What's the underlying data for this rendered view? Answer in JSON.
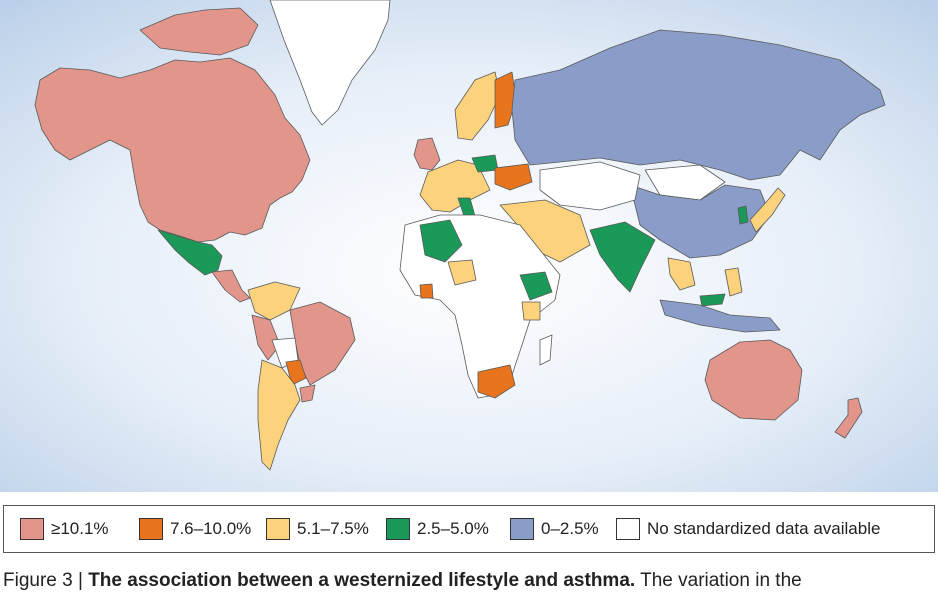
{
  "colors": {
    "ocean": "#dde9f6",
    "land_border": "#5a5a5a",
    "greenland": "#ffffff",
    "cat_1": "#e2958a",
    "cat_2": "#e8751d",
    "cat_3": "#fcd27c",
    "cat_4": "#1a9958",
    "cat_5": "#8a9cc8",
    "cat_6": "#ffffff"
  },
  "legend": {
    "items": [
      {
        "label": "≥10.1%",
        "color": "#e2958a"
      },
      {
        "label": "7.6–10.0%",
        "color": "#e8751d"
      },
      {
        "label": "5.1–7.5%",
        "color": "#fcd27c"
      },
      {
        "label": "2.5–5.0%",
        "color": "#1a9958"
      },
      {
        "label": "0–2.5%",
        "color": "#8a9cc8"
      },
      {
        "label": "No standardized data available",
        "color": "#ffffff"
      }
    ]
  },
  "caption": {
    "prefix": "Figure 3 | ",
    "bold": "The association between a westernized lifestyle and asthma.",
    "rest": " The variation in the"
  },
  "map_regions": [
    {
      "region": "North America",
      "category": "≥10.1%"
    },
    {
      "region": "Greenland",
      "category": "No standardized data available"
    },
    {
      "region": "Mexico",
      "category": "2.5–5.0%"
    },
    {
      "region": "Central America",
      "category": "≥10.1%"
    },
    {
      "region": "Colombia / Venezuela",
      "category": "5.1–7.5%"
    },
    {
      "region": "Brazil",
      "category": "≥10.1%"
    },
    {
      "region": "Peru",
      "category": "≥10.1%"
    },
    {
      "region": "Bolivia",
      "category": "No standardized data available"
    },
    {
      "region": "Paraguay",
      "category": "7.6–10.0%"
    },
    {
      "region": "Argentina / Chile",
      "category": "5.1–7.5%"
    },
    {
      "region": "United Kingdom / Ireland",
      "category": "≥10.1%"
    },
    {
      "region": "Scandinavia",
      "category": "5.1–7.5%"
    },
    {
      "region": "Finland",
      "category": "7.6–10.0%"
    },
    {
      "region": "Western Europe",
      "category": "5.1–7.5%"
    },
    {
      "region": "Poland",
      "category": "2.5–5.0%"
    },
    {
      "region": "Ukraine",
      "category": "7.6–10.0%"
    },
    {
      "region": "Italy",
      "category": "2.5–5.0%"
    },
    {
      "region": "Russia",
      "category": "0–2.5%"
    },
    {
      "region": "China",
      "category": "0–2.5%"
    },
    {
      "region": "Mongolia",
      "category": "No standardized data available"
    },
    {
      "region": "Central Asia",
      "category": "No standardized data available"
    },
    {
      "region": "Middle East",
      "category": "5.1–7.5%"
    },
    {
      "region": "India",
      "category": "2.5–5.0%"
    },
    {
      "region": "Korea",
      "category": "2.5–5.0%"
    },
    {
      "region": "Japan",
      "category": "5.1–7.5%"
    },
    {
      "region": "Southeast Asia",
      "category": "5.1–7.5%"
    },
    {
      "region": "Philippines",
      "category": "5.1–7.5%"
    },
    {
      "region": "Indonesia",
      "category": "0–2.5%"
    },
    {
      "region": "Malaysia",
      "category": "2.5–5.0%"
    },
    {
      "region": "Algeria",
      "category": "2.5–5.0%"
    },
    {
      "region": "Nigeria",
      "category": "5.1–7.5%"
    },
    {
      "region": "Ghana",
      "category": "7.6–10.0%"
    },
    {
      "region": "Ethiopia",
      "category": "2.5–5.0%"
    },
    {
      "region": "Kenya",
      "category": "5.1–7.5%"
    },
    {
      "region": "South Africa",
      "category": "7.6–10.0%"
    },
    {
      "region": "Rest of Africa",
      "category": "No standardized data available"
    },
    {
      "region": "Australia",
      "category": "≥10.1%"
    },
    {
      "region": "New Zealand",
      "category": "≥10.1%"
    }
  ]
}
